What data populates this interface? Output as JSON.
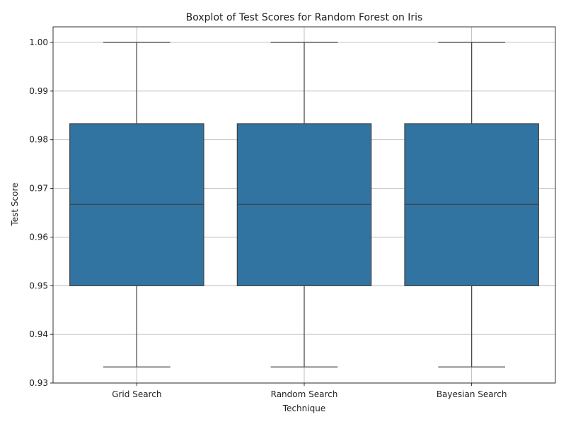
{
  "chart_data": {
    "type": "box",
    "title": "Boxplot of Test Scores for Random Forest on Iris",
    "xlabel": "Technique",
    "ylabel": "Test Score",
    "categories": [
      "Grid Search",
      "Random Search",
      "Bayesian Search"
    ],
    "boxes": [
      {
        "category": "Grid Search",
        "whisker_low": 0.9333,
        "q1": 0.95,
        "median": 0.9667,
        "q3": 0.9833,
        "whisker_high": 1.0
      },
      {
        "category": "Random Search",
        "whisker_low": 0.9333,
        "q1": 0.95,
        "median": 0.9667,
        "q3": 0.9833,
        "whisker_high": 1.0
      },
      {
        "category": "Bayesian Search",
        "whisker_low": 0.9333,
        "q1": 0.95,
        "median": 0.9667,
        "q3": 0.9833,
        "whisker_high": 1.0
      }
    ],
    "ylim": [
      0.93,
      1.0032
    ],
    "yticks": [
      "0.93",
      "0.94",
      "0.95",
      "0.96",
      "0.97",
      "0.98",
      "0.99",
      "1.00"
    ],
    "grid": true,
    "colors": {
      "box_fill": "#3274a1",
      "box_edge": "#3f3f3f",
      "grid": "#b0b0b0"
    }
  }
}
